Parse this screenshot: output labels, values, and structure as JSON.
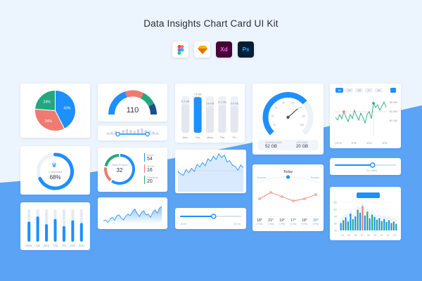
{
  "title": "Data Insights Chart Card UI Kit",
  "tools": [
    {
      "name": "figma-icon",
      "label": ""
    },
    {
      "name": "sketch-icon",
      "label": ""
    },
    {
      "name": "xd-icon",
      "label": "Xd"
    },
    {
      "name": "ps-icon",
      "label": "Ps"
    }
  ],
  "colors": {
    "blue": "#1e8fff",
    "green": "#24a77e",
    "coral": "#f07a6f",
    "navy": "#1b4f8c",
    "light_blue_bg": "#5aa3f5",
    "track": "#eef1f5"
  },
  "pie_card": {
    "chart_data": {
      "type": "pie",
      "slices": [
        {
          "label": "43%",
          "value": 43,
          "color": "#1e8fff"
        },
        {
          "label": "34%",
          "value": 34,
          "color": "#f07a6f"
        },
        {
          "label": "24%",
          "value": 24,
          "color": "#24a77e"
        }
      ]
    }
  },
  "gauge_card": {
    "value_label": "110",
    "chart_data": {
      "type": "gauge",
      "segments": [
        {
          "value": 40,
          "color": "#1e8fff"
        },
        {
          "value": 25,
          "color": "#f07a6f"
        },
        {
          "value": 20,
          "color": "#24a77e"
        },
        {
          "value": 15,
          "color": "#1b4f8c"
        }
      ]
    }
  },
  "column_card": {
    "chart_data": {
      "type": "bar",
      "categories": [
        "Mon",
        "Tue",
        "Wed",
        "Thu",
        "Fri"
      ],
      "values": [
        6.2,
        7.8,
        5.8,
        6.1,
        5.8
      ],
      "value_labels": [
        "6.2 GB",
        "7.8 GB",
        "5.8 GB",
        "6.1 GB",
        "5.8 GB"
      ],
      "highlight_index": 1,
      "ylim": [
        0,
        8
      ]
    }
  },
  "speed_card": {
    "download_label": "DOWNLOAD",
    "download_value": "52 GB",
    "upload_label": "UPLOAD",
    "upload_value": "20 GB",
    "ticks": [
      "20",
      "40",
      "60",
      "80",
      "100",
      "120",
      "140",
      "160"
    ],
    "level": 0.68
  },
  "stock_card": {
    "tabs": [
      "1D",
      "1W",
      "1M",
      "1Y",
      "All"
    ],
    "active_tab": 0,
    "price_labels": [
      "$2,450",
      "$2,300",
      "$2,150"
    ],
    "x_labels": [
      "12PM",
      "3PM",
      "6PM",
      "9PM"
    ]
  },
  "range_card": {
    "chart_data": {
      "type": "bar",
      "values": [
        2,
        3,
        4,
        3,
        5,
        6,
        5,
        4,
        6,
        7,
        5,
        4,
        3,
        2
      ]
    },
    "range": [
      0.22,
      0.78
    ]
  },
  "completed_card": {
    "label": "Completed",
    "value_label": "68%",
    "level": 0.68
  },
  "tasks_card": {
    "center_label": "Total Project",
    "center_value": "32",
    "items": [
      {
        "label": "Done",
        "value": "54",
        "color": "#1e8fff"
      },
      {
        "label": "To Do",
        "value": "16",
        "color": "#f07a6f"
      },
      {
        "label": "Pending",
        "value": "20",
        "color": "#24a77e"
      }
    ]
  },
  "area_card": {
    "chart_data": {
      "type": "area",
      "values": [
        42,
        40,
        46,
        38,
        34,
        41,
        30,
        28,
        36,
        40,
        31,
        26,
        30,
        20,
        14,
        24,
        32,
        22,
        18,
        28,
        26,
        34,
        22,
        16,
        24,
        12,
        8
      ]
    }
  },
  "wave_card": {
    "chart_data": {
      "type": "line",
      "values": [
        30,
        26,
        24,
        33,
        28,
        35,
        30,
        41,
        37,
        44,
        39,
        50,
        46,
        54,
        49,
        58,
        52,
        56,
        45,
        47,
        40,
        38,
        32,
        40,
        36
      ]
    }
  },
  "slider_card": {
    "left_label": "0 mi",
    "right_label": "24 mi",
    "level": 0.55
  },
  "weather_card": {
    "today_label": "Today",
    "left_label": "Sunrise",
    "right_label": "Sunset",
    "temps": [
      "18°",
      "21°",
      "19°",
      "17°",
      "18°",
      "20°"
    ],
    "days": [
      "1 Feb",
      "2 Feb",
      "3 Feb",
      "4 Feb",
      "5 Feb",
      "6 Feb"
    ],
    "chart_data": {
      "type": "line",
      "values": [
        18,
        21,
        19,
        17,
        18,
        20
      ]
    }
  },
  "distance_card": {
    "label": "24 miles",
    "level": 0.62
  },
  "hist_card": {
    "badge": "26 Mar 2022",
    "y_labels": [
      "150",
      "120",
      "90",
      "60",
      "30"
    ],
    "x_labels": [
      "04",
      "05",
      "06",
      "07",
      "08",
      "09",
      "10",
      "11",
      "12"
    ],
    "chart_data": {
      "type": "bar",
      "values": [
        40,
        55,
        70,
        48,
        90,
        60,
        75,
        110,
        95,
        130,
        80,
        100,
        65,
        85,
        72,
        58,
        66,
        50,
        62,
        45,
        55,
        40,
        48,
        35
      ],
      "highlight_index": 9
    }
  },
  "vbar_card": {
    "chart_data": {
      "type": "bar",
      "categories": [
        "MON",
        "TUE",
        "WED",
        "THU",
        "FRI",
        "SAT",
        "SUN"
      ],
      "values": [
        0.62,
        0.78,
        0.54,
        0.7,
        0.48,
        0.66,
        0.58
      ]
    }
  }
}
